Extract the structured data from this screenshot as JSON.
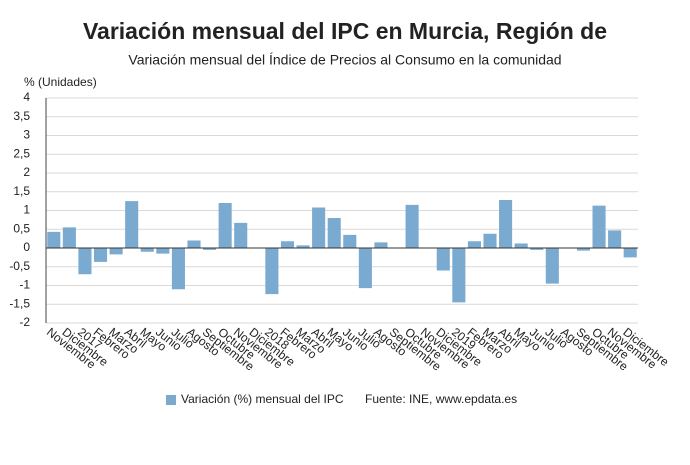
{
  "chart_data": {
    "type": "bar",
    "title": "Variación mensual del IPC en Murcia, Región de",
    "subtitle": "Variación mensual del Índice de Precios al Consumo en la comunidad",
    "y_label": "% (Unidades)",
    "categories": [
      "Noviembre",
      "Diciembre",
      "2017",
      "Febrero",
      "Marzo",
      "Abril",
      "Mayo",
      "Junio",
      "Julio",
      "Agosto",
      "Septiembre",
      "Octubre",
      "Noviembre",
      "Diciembre",
      "2018",
      "Febrero",
      "Marzo",
      "Abril",
      "Mayo",
      "Junio",
      "Julio",
      "Agosto",
      "Septiembre",
      "Octubre",
      "Noviembre",
      "Diciembre",
      "2019",
      "Febrero",
      "Marzo",
      "Abril",
      "Mayo",
      "Junio",
      "Julio",
      "Agosto",
      "Septiembre",
      "Octubre",
      "Noviembre",
      "Diciembre"
    ],
    "series": [
      {
        "name": "Variación (%) mensual del IPC",
        "color": "#7aaad0",
        "values": [
          0.43,
          0.55,
          -0.7,
          -0.37,
          -0.17,
          1.25,
          -0.1,
          -0.15,
          -1.1,
          0.2,
          -0.05,
          1.2,
          0.67,
          0,
          -1.23,
          0.18,
          0.07,
          1.08,
          0.8,
          0.35,
          -1.07,
          0.15,
          0,
          1.15,
          0,
          -0.6,
          -1.45,
          0.18,
          0.38,
          1.28,
          0.12,
          -0.05,
          -0.95,
          0,
          -0.07,
          1.13,
          0.47,
          -0.25
        ]
      }
    ],
    "source": "Fuente: INE, www.epdata.es",
    "ylim": [
      -2,
      4
    ],
    "yticks": [
      {
        "value": -2,
        "label": "-2"
      },
      {
        "value": -1.5,
        "label": "-1,5"
      },
      -1,
      {
        "value": -0.5,
        "label": "-0,5"
      },
      0,
      {
        "value": 0.5,
        "label": "0,5"
      },
      1,
      {
        "value": 1.5,
        "label": "1,5"
      },
      2,
      {
        "value": 2.5,
        "label": "2,5"
      },
      3,
      {
        "value": 3.5,
        "label": "3,5"
      },
      4
    ],
    "grid": true
  }
}
